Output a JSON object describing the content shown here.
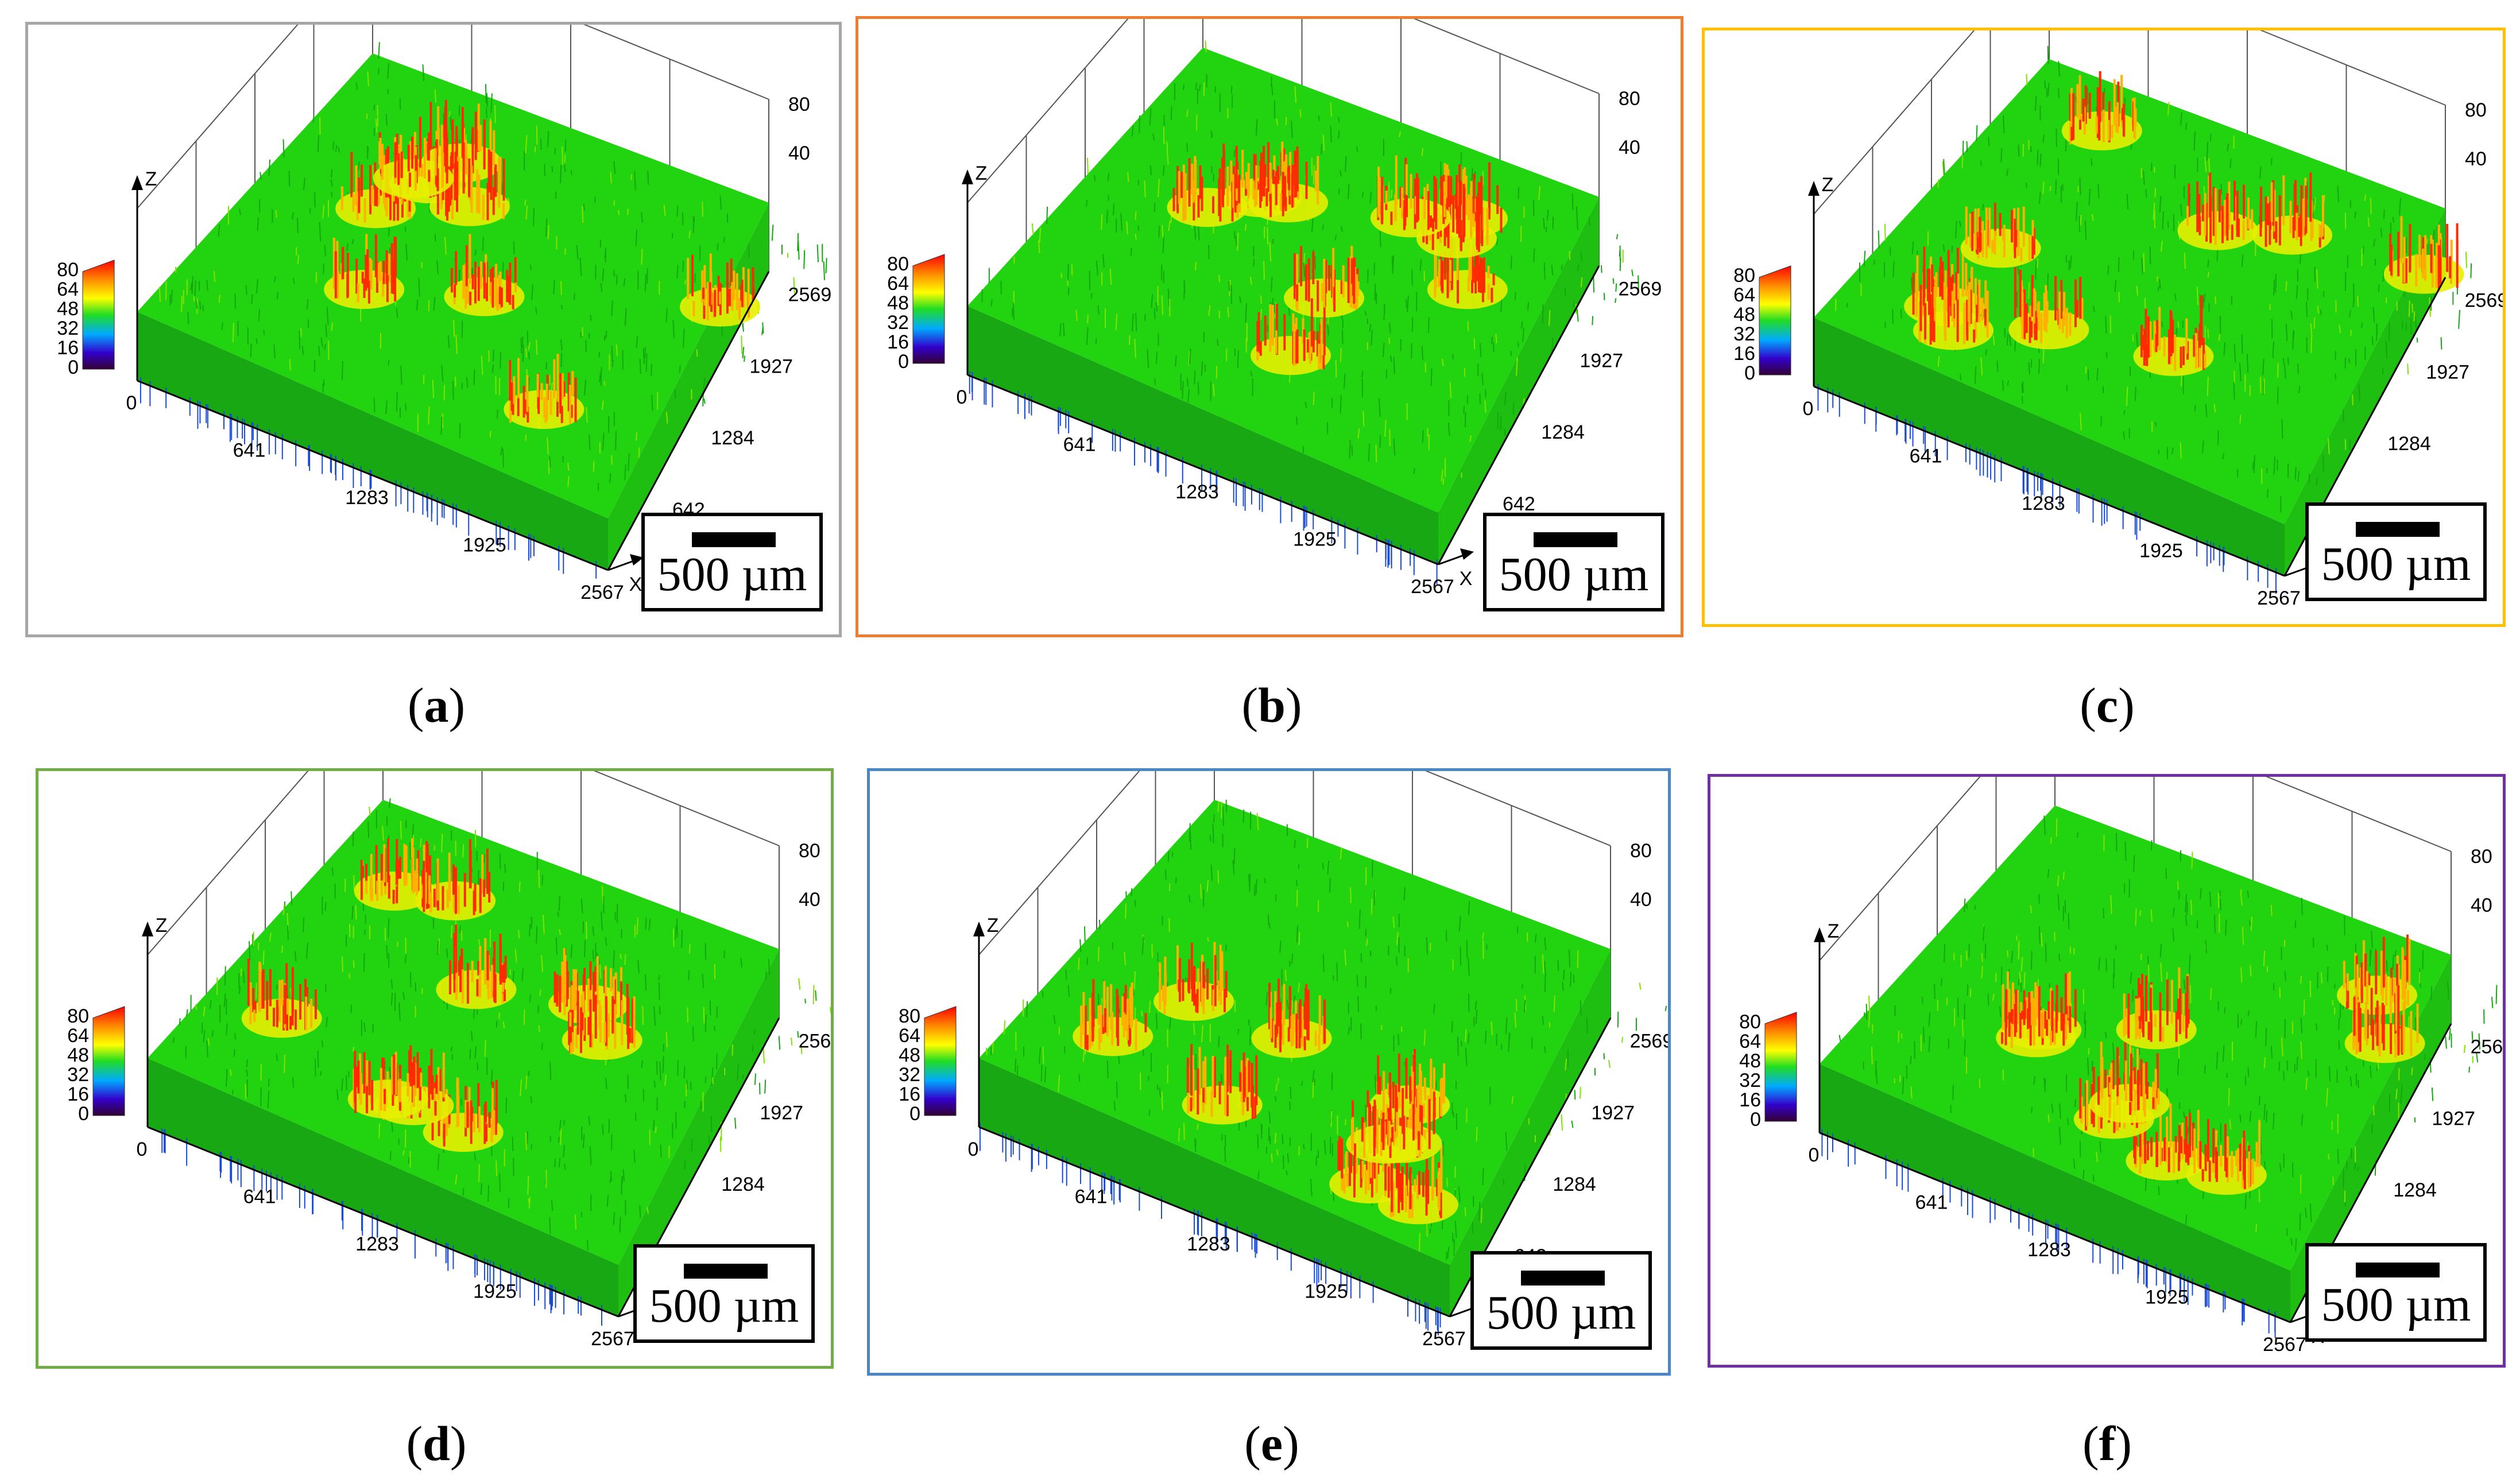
{
  "panels": [
    {
      "id": "a",
      "label": "a",
      "border_color": "#a6a6a6",
      "scale_text": "500 µm",
      "surface_variant": 0
    },
    {
      "id": "b",
      "label": "b",
      "border_color": "#ed7d31",
      "scale_text": "500 µm",
      "surface_variant": 1
    },
    {
      "id": "c",
      "label": "c",
      "border_color": "#ffc000",
      "scale_text": "500 µm",
      "surface_variant": 2
    },
    {
      "id": "d",
      "label": "d",
      "border_color": "#70ad47",
      "scale_text": "500 µm",
      "surface_variant": 3
    },
    {
      "id": "e",
      "label": "e",
      "border_color": "#4a86c8",
      "scale_text": "500 µm",
      "surface_variant": 4
    },
    {
      "id": "f",
      "label": "f",
      "border_color": "#7030a0",
      "scale_text": "500 µm",
      "surface_variant": 5
    }
  ],
  "axes": {
    "z_label": "Z",
    "x_label": "X",
    "colorbar_ticks": [
      "80",
      "64",
      "48",
      "32",
      "16",
      "0"
    ],
    "z_ticks": [
      "80",
      "40"
    ],
    "x_ticks": [
      "0",
      "641",
      "1283",
      "1925",
      "2567"
    ],
    "y_ticks": [
      "2569",
      "1927",
      "1284",
      "642"
    ]
  },
  "colors": {
    "surface": "#22d40f",
    "surface_dark": "#18a814",
    "peak_hot": "#ff2a00",
    "peak_warm": "#ffb000",
    "peak_yellow": "#e6f000",
    "valley": "#1a4ad0"
  }
}
